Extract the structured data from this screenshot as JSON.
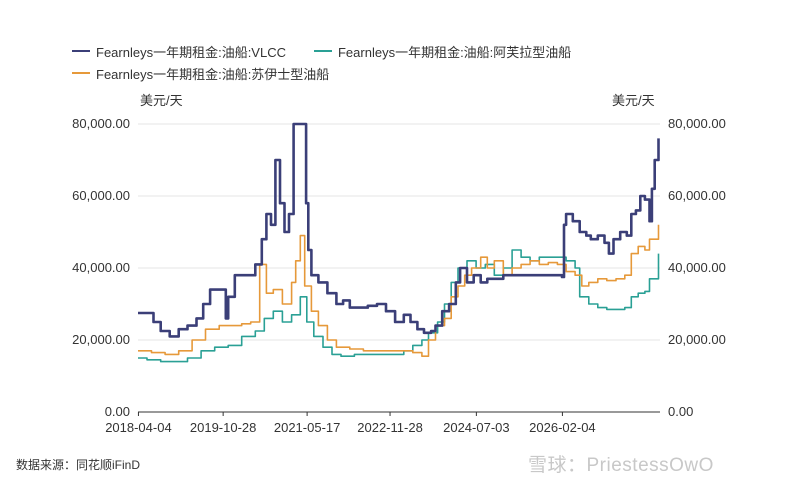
{
  "chart_data": {
    "type": "line",
    "series": [
      {
        "name": "Fearnleys一年期租金:油船:VLCC",
        "color": "#3b3f78",
        "axis": "left",
        "points": [
          [
            "2018-04-01",
            27500
          ],
          [
            "2018-06-01",
            27500
          ],
          [
            "2018-07-15",
            25000
          ],
          [
            "2018-09-01",
            22500
          ],
          [
            "2018-11-01",
            21000
          ],
          [
            "2019-01-01",
            23000
          ],
          [
            "2019-03-01",
            24000
          ],
          [
            "2019-05-01",
            26000
          ],
          [
            "2019-06-15",
            30000
          ],
          [
            "2019-08-01",
            34000
          ],
          [
            "2019-10-01",
            34000
          ],
          [
            "2019-11-15",
            26000
          ],
          [
            "2019-12-01",
            32000
          ],
          [
            "2020-01-15",
            38000
          ],
          [
            "2020-03-01",
            38000
          ],
          [
            "2020-05-01",
            38000
          ],
          [
            "2020-06-01",
            41000
          ],
          [
            "2020-07-15",
            48000
          ],
          [
            "2020-08-15",
            55000
          ],
          [
            "2020-09-15",
            52000
          ],
          [
            "2020-10-15",
            70000
          ],
          [
            "2020-11-15",
            58000
          ],
          [
            "2020-12-15",
            50000
          ],
          [
            "2021-01-15",
            55000
          ],
          [
            "2021-02-15",
            80000
          ],
          [
            "2021-04-15",
            80000
          ],
          [
            "2021-05-10",
            58000
          ],
          [
            "2021-05-25",
            45000
          ],
          [
            "2021-06-15",
            38000
          ],
          [
            "2021-08-01",
            36000
          ],
          [
            "2021-10-01",
            33000
          ],
          [
            "2021-12-01",
            30000
          ],
          [
            "2022-01-15",
            31000
          ],
          [
            "2022-03-01",
            29000
          ],
          [
            "2022-05-01",
            29000
          ],
          [
            "2022-07-01",
            29500
          ],
          [
            "2022-09-01",
            30000
          ],
          [
            "2022-11-01",
            28000
          ],
          [
            "2023-01-01",
            25000
          ],
          [
            "2023-03-01",
            27000
          ],
          [
            "2023-04-15",
            25000
          ],
          [
            "2023-06-01",
            23000
          ],
          [
            "2023-07-15",
            22000
          ],
          [
            "2023-09-01",
            22500
          ],
          [
            "2023-10-01",
            24000
          ],
          [
            "2023-11-15",
            28000
          ],
          [
            "2024-01-01",
            30000
          ],
          [
            "2024-02-15",
            36000
          ],
          [
            "2024-03-15",
            40000
          ],
          [
            "2024-05-01",
            36000
          ],
          [
            "2024-06-15",
            38000
          ],
          [
            "2024-08-01",
            36000
          ],
          [
            "2024-09-15",
            37000
          ],
          [
            "2024-11-01",
            37000
          ],
          [
            "2025-01-01",
            38000
          ],
          [
            "2025-03-01",
            38000
          ],
          [
            "2025-05-01",
            38000
          ],
          [
            "2025-07-01",
            38000
          ],
          [
            "2025-09-01",
            38000
          ],
          [
            "2025-10-15",
            38000
          ],
          [
            "2025-11-01",
            38000
          ],
          [
            "2025-12-01",
            38000
          ],
          [
            "2026-01-01",
            38000
          ],
          [
            "2026-02-01",
            37500
          ],
          [
            "2026-02-15",
            52000
          ],
          [
            "2026-03-01",
            55000
          ],
          [
            "2026-04-15",
            53000
          ],
          [
            "2026-06-01",
            50000
          ],
          [
            "2026-07-15",
            49000
          ],
          [
            "2026-08-15",
            48000
          ],
          [
            "2026-10-01",
            49000
          ],
          [
            "2026-11-15",
            47000
          ],
          [
            "2026-12-15",
            44000
          ],
          [
            "2027-01-15",
            48000
          ],
          [
            "2027-03-01",
            50000
          ],
          [
            "2027-04-15",
            49000
          ],
          [
            "2027-05-15",
            55000
          ],
          [
            "2027-06-15",
            56000
          ],
          [
            "2027-07-15",
            60000
          ],
          [
            "2027-08-15",
            59000
          ],
          [
            "2027-09-15",
            53000
          ],
          [
            "2027-10-01",
            62000
          ],
          [
            "2027-10-20",
            70000
          ],
          [
            "2027-11-15",
            76000
          ]
        ]
      },
      {
        "name": "Fearnleys一年期租金:油船:阿芙拉型油船",
        "color": "#2aa095",
        "axis": "left",
        "points": [
          [
            "2018-04-01",
            15000
          ],
          [
            "2018-06-01",
            14500
          ],
          [
            "2018-09-01",
            14000
          ],
          [
            "2018-12-01",
            14000
          ],
          [
            "2019-03-01",
            15000
          ],
          [
            "2019-06-01",
            17000
          ],
          [
            "2019-09-01",
            18000
          ],
          [
            "2019-12-01",
            18500
          ],
          [
            "2020-03-01",
            21000
          ],
          [
            "2020-06-01",
            22500
          ],
          [
            "2020-08-01",
            26000
          ],
          [
            "2020-10-01",
            28000
          ],
          [
            "2020-12-01",
            25000
          ],
          [
            "2021-02-01",
            27000
          ],
          [
            "2021-04-01",
            32000
          ],
          [
            "2021-05-15",
            25000
          ],
          [
            "2021-07-01",
            21000
          ],
          [
            "2021-09-01",
            18000
          ],
          [
            "2021-11-01",
            16000
          ],
          [
            "2022-01-01",
            15500
          ],
          [
            "2022-04-01",
            16000
          ],
          [
            "2022-07-01",
            16000
          ],
          [
            "2022-10-01",
            16000
          ],
          [
            "2023-01-01",
            16000
          ],
          [
            "2023-03-01",
            17000
          ],
          [
            "2023-05-01",
            18500
          ],
          [
            "2023-07-01",
            20000
          ],
          [
            "2023-08-15",
            22000
          ],
          [
            "2023-10-15",
            25000
          ],
          [
            "2023-12-01",
            30000
          ],
          [
            "2024-01-15",
            36000
          ],
          [
            "2024-03-01",
            40000
          ],
          [
            "2024-05-01",
            42000
          ],
          [
            "2024-07-01",
            40000
          ],
          [
            "2024-09-01",
            41000
          ],
          [
            "2024-11-01",
            38000
          ],
          [
            "2025-01-01",
            40000
          ],
          [
            "2025-03-01",
            45000
          ],
          [
            "2025-05-01",
            43000
          ],
          [
            "2025-07-01",
            42000
          ],
          [
            "2025-09-01",
            43000
          ],
          [
            "2025-11-01",
            43000
          ],
          [
            "2026-01-01",
            43000
          ],
          [
            "2026-03-01",
            42000
          ],
          [
            "2026-05-01",
            40000
          ],
          [
            "2026-06-01",
            32000
          ],
          [
            "2026-08-01",
            30000
          ],
          [
            "2026-10-01",
            29000
          ],
          [
            "2026-12-01",
            28500
          ],
          [
            "2027-02-01",
            28500
          ],
          [
            "2027-04-01",
            29000
          ],
          [
            "2027-05-15",
            32000
          ],
          [
            "2027-07-01",
            33000
          ],
          [
            "2027-08-15",
            33500
          ],
          [
            "2027-09-15",
            37000
          ],
          [
            "2027-11-15",
            44000
          ]
        ]
      },
      {
        "name": "Fearnleys一年期租金:油船:苏伊士型油船",
        "color": "#e6993a",
        "axis": "left",
        "points": [
          [
            "2018-04-01",
            17000
          ],
          [
            "2018-07-01",
            16500
          ],
          [
            "2018-10-01",
            16000
          ],
          [
            "2019-01-01",
            17000
          ],
          [
            "2019-04-01",
            20000
          ],
          [
            "2019-07-01",
            23000
          ],
          [
            "2019-10-01",
            24000
          ],
          [
            "2020-01-01",
            24000
          ],
          [
            "2020-03-01",
            24500
          ],
          [
            "2020-05-01",
            25000
          ],
          [
            "2020-07-01",
            41000
          ],
          [
            "2020-08-15",
            33000
          ],
          [
            "2020-10-01",
            34000
          ],
          [
            "2020-12-01",
            30000
          ],
          [
            "2021-02-01",
            36000
          ],
          [
            "2021-03-01",
            42000
          ],
          [
            "2021-04-01",
            49000
          ],
          [
            "2021-05-01",
            35000
          ],
          [
            "2021-06-15",
            28000
          ],
          [
            "2021-08-01",
            24000
          ],
          [
            "2021-10-01",
            20000
          ],
          [
            "2021-12-01",
            18000
          ],
          [
            "2022-03-01",
            17500
          ],
          [
            "2022-06-01",
            17000
          ],
          [
            "2022-09-01",
            17000
          ],
          [
            "2022-12-01",
            17000
          ],
          [
            "2023-03-01",
            17000
          ],
          [
            "2023-05-01",
            16500
          ],
          [
            "2023-07-01",
            15500
          ],
          [
            "2023-08-15",
            20000
          ],
          [
            "2023-10-01",
            24000
          ],
          [
            "2023-12-01",
            26000
          ],
          [
            "2024-01-15",
            32000
          ],
          [
            "2024-03-01",
            35000
          ],
          [
            "2024-04-15",
            38000
          ],
          [
            "2024-06-01",
            40000
          ],
          [
            "2024-08-01",
            43000
          ],
          [
            "2024-09-15",
            40000
          ],
          [
            "2024-11-01",
            42000
          ],
          [
            "2025-01-01",
            38000
          ],
          [
            "2025-03-01",
            40000
          ],
          [
            "2025-05-01",
            41000
          ],
          [
            "2025-07-01",
            42000
          ],
          [
            "2025-09-01",
            41000
          ],
          [
            "2025-11-01",
            41500
          ],
          [
            "2026-01-01",
            41000
          ],
          [
            "2026-03-01",
            39000
          ],
          [
            "2026-05-01",
            38000
          ],
          [
            "2026-06-15",
            35000
          ],
          [
            "2026-08-01",
            36000
          ],
          [
            "2026-10-01",
            37000
          ],
          [
            "2026-12-01",
            36500
          ],
          [
            "2027-02-01",
            37000
          ],
          [
            "2027-04-01",
            38000
          ],
          [
            "2027-05-15",
            44000
          ],
          [
            "2027-07-01",
            46000
          ],
          [
            "2027-08-15",
            45000
          ],
          [
            "2027-09-15",
            48000
          ],
          [
            "2027-11-15",
            52000
          ]
        ]
      }
    ],
    "xticks": [
      "2018-04-04",
      "2019-10-28",
      "2021-05-17",
      "2022-11-28",
      "2024-07-03",
      "2026-02-04"
    ],
    "yticks": [
      "0.00",
      "20,000.00",
      "40,000.00",
      "60,000.00",
      "80,000.00"
    ],
    "ylim": [
      0,
      80000
    ],
    "y_unit_left": "美元/天",
    "y_unit_right": "美元/天",
    "grid": true,
    "legend": "top-left"
  },
  "source_text": "数据来源：同花顺iFinD",
  "watermark_text": "雪球：PriestessOwO"
}
